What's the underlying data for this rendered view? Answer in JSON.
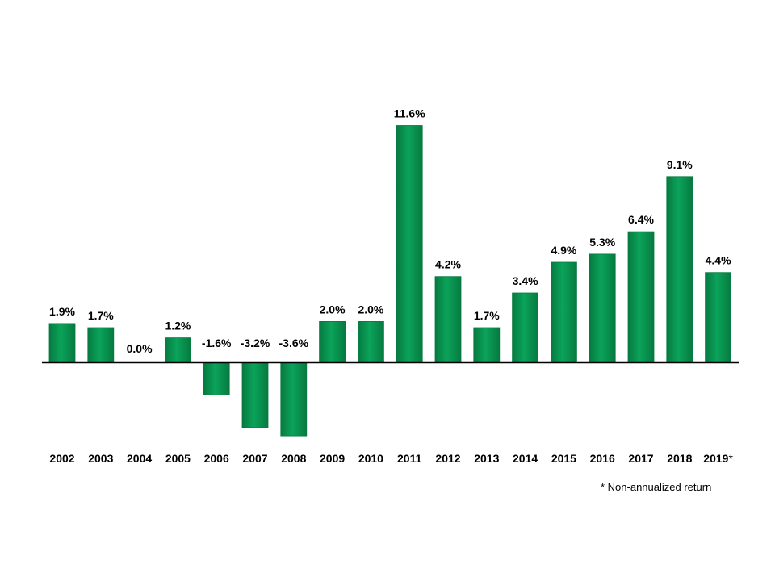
{
  "chart_data": {
    "type": "bar",
    "categories": [
      "2002",
      "2003",
      "2004",
      "2005",
      "2006",
      "2007",
      "2008",
      "2009",
      "2010",
      "2011",
      "2012",
      "2013",
      "2014",
      "2015",
      "2016",
      "2017",
      "2018",
      "2019"
    ],
    "category_suffixes": [
      "",
      "",
      "",
      "",
      "",
      "",
      "",
      "",
      "",
      "",
      "",
      "",
      "",
      "",
      "",
      "",
      "",
      "*"
    ],
    "values": [
      1.9,
      1.7,
      0.0,
      1.2,
      -1.6,
      -3.2,
      -3.6,
      2.0,
      2.0,
      11.6,
      4.2,
      1.7,
      3.4,
      4.9,
      5.3,
      6.4,
      9.1,
      4.4
    ],
    "value_labels": [
      "1.9%",
      "1.7%",
      "0.0%",
      "1.2%",
      "-1.6%",
      "-3.2%",
      "-3.6%",
      "2.0%",
      "2.0%",
      "11.6%",
      "4.2%",
      "1.7%",
      "3.4%",
      "4.9%",
      "5.3%",
      "6.4%",
      "9.1%",
      "4.4%"
    ],
    "title": "",
    "xlabel": "",
    "ylabel": "",
    "grid": false,
    "legend": "none",
    "colors": {
      "bar": "#0ba35a",
      "bar_dark": "#067a40",
      "bar_light": "#2ec27a",
      "axis": "#000000"
    }
  },
  "footnote": "* Non-annualized return"
}
